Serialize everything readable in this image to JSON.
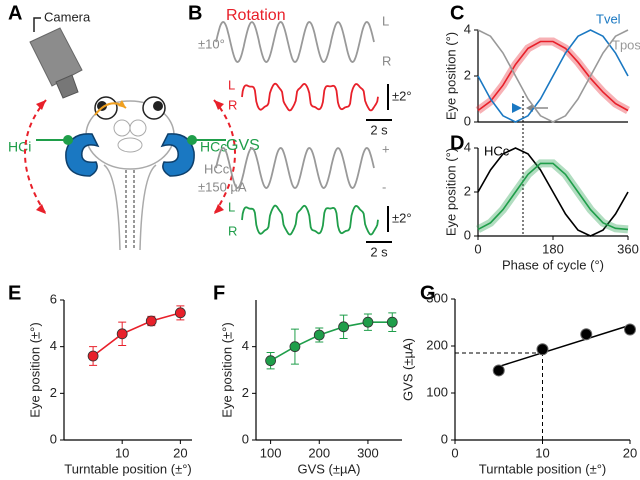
{
  "panel_a": {
    "label": "A",
    "camera": "Camera",
    "left": "HCi",
    "right": "HCc"
  },
  "panel_b": {
    "label": "B",
    "rotation": "Rotation",
    "amp1": "±10°",
    "l1": "L",
    "r1": "R",
    "scale1": "±2°",
    "time1": "2 s",
    "l2": "L",
    "r2": "R",
    "gvs": "GVS",
    "hcc": "HCc",
    "amp2": "±150 µA",
    "plus": "+",
    "minus": "-",
    "l3": "L",
    "r3": "R",
    "scale2": "±2°",
    "time2": "2 s"
  },
  "chart_data": [
    {
      "type": "line",
      "label": "C",
      "ylabel": "Eye position (°)",
      "xlim": [
        0,
        360
      ],
      "ylim": [
        0,
        4
      ],
      "yticks": [
        0,
        2,
        4
      ],
      "x": [
        0,
        30,
        60,
        90,
        120,
        150,
        180,
        210,
        240,
        270,
        300,
        330,
        360
      ],
      "series": [
        {
          "color": "#e8202a",
          "band": true,
          "values": [
            0.5,
            0.9,
            1.6,
            2.5,
            3.2,
            3.5,
            3.5,
            3.2,
            2.6,
            1.9,
            1.3,
            0.8,
            0.5
          ]
        },
        {
          "name": "Tvel",
          "color": "#1a78c2",
          "values": [
            2,
            1,
            0.27,
            0,
            0.27,
            1,
            2,
            3,
            3.73,
            4,
            3.73,
            3,
            2
          ]
        },
        {
          "name": "Tpos",
          "color": "#999999",
          "values": [
            4,
            3.73,
            3,
            2,
            1,
            0.27,
            0,
            0.27,
            1,
            2,
            3,
            3.73,
            4
          ]
        }
      ]
    },
    {
      "type": "line",
      "label": "D",
      "ylabel": "Eye position (°)",
      "xlabel": "Phase of cycle (°)",
      "xlim": [
        0,
        360
      ],
      "ylim": [
        0,
        4
      ],
      "yticks": [
        0,
        2,
        4
      ],
      "xticks": [
        0,
        180,
        360
      ],
      "x": [
        0,
        30,
        60,
        90,
        120,
        150,
        180,
        210,
        240,
        270,
        300,
        330,
        360
      ],
      "series": [
        {
          "name": "HCc",
          "color": "#000000",
          "values": [
            2,
            3,
            3.73,
            4,
            3.73,
            3,
            2,
            1,
            0.27,
            0,
            0.27,
            1,
            2
          ]
        },
        {
          "color": "#1f9e4a",
          "band": true,
          "values": [
            0.3,
            0.6,
            1.2,
            2.0,
            2.8,
            3.3,
            3.3,
            2.8,
            2.0,
            1.2,
            0.6,
            0.35,
            0.3
          ]
        }
      ]
    },
    {
      "type": "line",
      "label": "E",
      "ylabel": "Eye position (±°)",
      "xlabel": "Turntable position (±°)",
      "xlim": [
        0,
        22
      ],
      "ylim": [
        0,
        6
      ],
      "yticks": [
        0,
        2,
        4,
        6
      ],
      "xticks": [
        10,
        20
      ],
      "x": [
        5,
        10,
        15,
        20
      ],
      "series": [
        {
          "color": "#e8202a",
          "values": [
            3.6,
            4.55,
            5.1,
            5.45
          ],
          "errors": [
            0.4,
            0.5,
            0.2,
            0.3
          ]
        }
      ]
    },
    {
      "type": "line",
      "label": "F",
      "ylabel": "Eye position (±°)",
      "xlabel": "GVS (±µA)",
      "xlim": [
        70,
        370
      ],
      "ylim": [
        0,
        6
      ],
      "yticks": [
        0,
        2,
        4
      ],
      "xticks": [
        100,
        200,
        300
      ],
      "x": [
        100,
        150,
        200,
        250,
        300,
        350
      ],
      "series": [
        {
          "color": "#1f9e4a",
          "values": [
            3.4,
            4.0,
            4.5,
            4.85,
            5.05,
            5.05
          ],
          "errors": [
            0.35,
            0.75,
            0.3,
            0.5,
            0.35,
            0.4
          ]
        }
      ]
    },
    {
      "type": "scatter",
      "label": "G",
      "ylabel": "GVS (±µA)",
      "xlabel": "Turntable position (±°)",
      "xlim": [
        0,
        20
      ],
      "ylim": [
        0,
        300
      ],
      "yticks": [
        0,
        100,
        200,
        300
      ],
      "xticks": [
        0,
        10,
        20
      ],
      "x": [
        5,
        10,
        15,
        20
      ],
      "color": "#000000",
      "values": [
        148,
        193,
        225,
        235
      ],
      "fit": true,
      "guide": {
        "x": 10,
        "y": 185
      }
    }
  ]
}
